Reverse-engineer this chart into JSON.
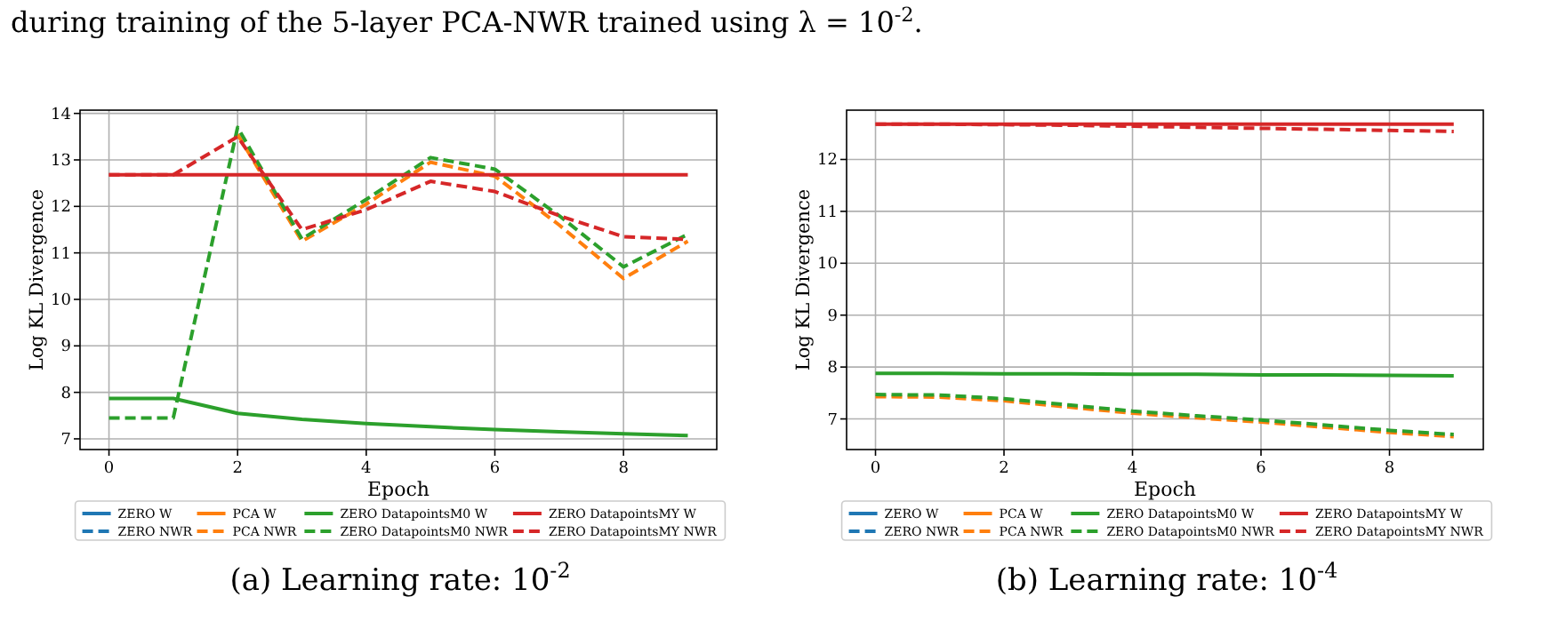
{
  "chart_data": [
    {
      "type": "line",
      "title": "(a) Learning rate: 10$^{-2}$",
      "xlabel": "Epoch",
      "ylabel": "Log KL Divergence",
      "annotations": [
        "during training of the 5-layer PCA-NWR trained using λ = 10$^{-2}$."
      ],
      "x": [
        0,
        1,
        2,
        3,
        4,
        5,
        6,
        7,
        8,
        9
      ],
      "xlim": [
        -0.45,
        9.45
      ],
      "xticks": [
        0,
        2,
        4,
        6,
        8
      ],
      "ylim": [
        6.77,
        14.07
      ],
      "yticks": [
        7,
        8,
        9,
        10,
        11,
        12,
        13,
        14
      ],
      "grid": true,
      "legend": "bottom",
      "series": [
        {
          "name": "ZERO W",
          "color": "#1f77b4",
          "line_style": "solid",
          "values": [
            null,
            null,
            null,
            null,
            null,
            null,
            null,
            null,
            null,
            null
          ]
        },
        {
          "name": "ZERO NWR",
          "color": "#1f77b4",
          "line_style": "dashed",
          "values": [
            null,
            null,
            null,
            null,
            null,
            null,
            null,
            null,
            null,
            null
          ]
        },
        {
          "name": "PCA W",
          "color": "#ff7f0e",
          "line_style": "solid",
          "values": [
            null,
            null,
            null,
            null,
            null,
            null,
            null,
            null,
            null,
            null
          ]
        },
        {
          "name": "PCA NWR",
          "color": "#ff7f0e",
          "line_style": "dashed",
          "values": [
            null,
            null,
            13.55,
            11.25,
            12.05,
            12.95,
            12.65,
            11.6,
            10.45,
            11.25
          ]
        },
        {
          "name": "ZERO DatapointsM0 W",
          "color": "#2ca02c",
          "line_style": "solid",
          "values": [
            7.87,
            7.87,
            7.55,
            7.42,
            7.33,
            7.26,
            7.2,
            7.15,
            7.11,
            7.07
          ]
        },
        {
          "name": "ZERO DatapointsM0 NWR",
          "color": "#2ca02c",
          "line_style": "dashed",
          "values": [
            7.45,
            7.45,
            13.7,
            11.3,
            12.15,
            13.05,
            12.8,
            11.8,
            10.7,
            11.4
          ]
        },
        {
          "name": "ZERO DatapointsMY W",
          "color": "#d62728",
          "line_style": "solid",
          "values": [
            12.68,
            12.68,
            12.68,
            12.68,
            12.68,
            12.68,
            12.68,
            12.68,
            12.68,
            12.68
          ]
        },
        {
          "name": "ZERO DatapointsMY NWR",
          "color": "#d62728",
          "line_style": "dashed",
          "values": [
            12.68,
            12.68,
            13.5,
            11.5,
            11.93,
            12.54,
            12.32,
            11.8,
            11.35,
            11.29
          ]
        }
      ]
    },
    {
      "type": "line",
      "title": "(b) Learning rate: 10$^{-4}$",
      "xlabel": "Epoch",
      "ylabel": "Log KL Divergence",
      "x": [
        0,
        1,
        2,
        3,
        4,
        5,
        6,
        7,
        8,
        9
      ],
      "xlim": [
        -0.45,
        9.46
      ],
      "xticks": [
        0,
        2,
        4,
        6,
        8
      ],
      "ylim": [
        6.41,
        12.95
      ],
      "yticks": [
        7,
        8,
        9,
        10,
        11,
        12
      ],
      "grid": true,
      "legend": "bottom",
      "series": [
        {
          "name": "ZERO W",
          "color": "#1f77b4",
          "line_style": "solid",
          "values": [
            null,
            null,
            null,
            null,
            null,
            null,
            null,
            null,
            null,
            null
          ]
        },
        {
          "name": "ZERO NWR",
          "color": "#1f77b4",
          "line_style": "dashed",
          "values": [
            null,
            null,
            null,
            null,
            null,
            null,
            null,
            null,
            null,
            null
          ]
        },
        {
          "name": "PCA W",
          "color": "#ff7f0e",
          "line_style": "solid",
          "values": [
            null,
            null,
            null,
            null,
            null,
            null,
            null,
            null,
            null,
            null
          ]
        },
        {
          "name": "PCA NWR",
          "color": "#ff7f0e",
          "line_style": "dashed",
          "values": [
            7.43,
            7.42,
            7.35,
            7.23,
            7.11,
            7.02,
            6.94,
            6.84,
            6.74,
            6.66
          ]
        },
        {
          "name": "ZERO DatapointsM0 W",
          "color": "#2ca02c",
          "line_style": "solid",
          "values": [
            7.88,
            7.88,
            7.87,
            7.87,
            7.86,
            7.86,
            7.85,
            7.85,
            7.84,
            7.83
          ]
        },
        {
          "name": "ZERO DatapointsM0 NWR",
          "color": "#2ca02c",
          "line_style": "dashed",
          "values": [
            7.47,
            7.46,
            7.39,
            7.27,
            7.15,
            7.06,
            6.98,
            6.88,
            6.78,
            6.7
          ]
        },
        {
          "name": "ZERO DatapointsMY W",
          "color": "#d62728",
          "line_style": "solid",
          "values": [
            12.68,
            12.68,
            12.68,
            12.68,
            12.68,
            12.68,
            12.68,
            12.68,
            12.68,
            12.68
          ]
        },
        {
          "name": "ZERO DatapointsMY NWR",
          "color": "#d62728",
          "line_style": "dashed",
          "values": [
            12.68,
            12.68,
            12.67,
            12.66,
            12.64,
            12.62,
            12.6,
            12.58,
            12.56,
            12.54
          ]
        }
      ]
    }
  ]
}
